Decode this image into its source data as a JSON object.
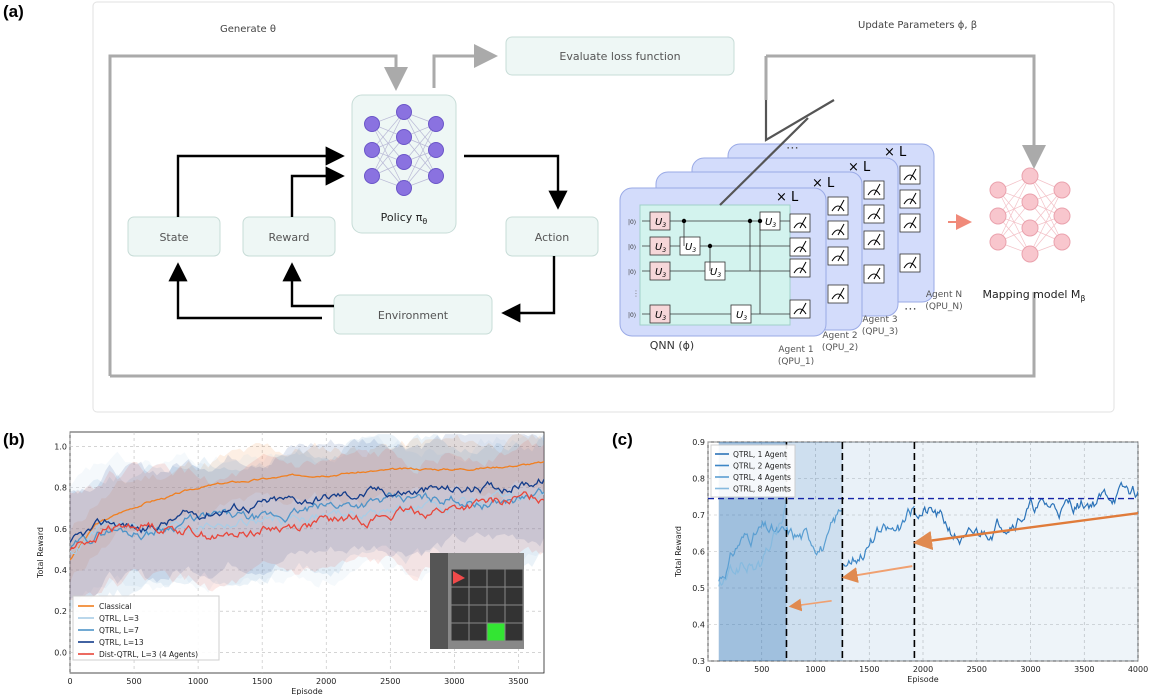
{
  "panels": {
    "a": "(a)",
    "b": "(b)",
    "c": "(c)"
  },
  "diagram": {
    "generate_label": "Generate θ",
    "update_label": "Update Parameters ϕ, β",
    "evaluate_box": "Evaluate loss function",
    "policy_label": "Policy π",
    "policy_sub": "θ",
    "state_box": "State",
    "reward_box": "Reward",
    "action_box": "Action",
    "environment_box": "Environment",
    "qnn_label": "QNN (ϕ)",
    "times_L": "× L",
    "u3": "U",
    "u3_sub": "3",
    "ket0": "|0⟩",
    "agents": [
      {
        "name": "Agent 1",
        "qpu": "(QPU_1)"
      },
      {
        "name": "Agent 2",
        "qpu": "(QPU_2)"
      },
      {
        "name": "Agent 3",
        "qpu": "(QPU_3)"
      },
      {
        "name": "Agent N",
        "qpu": "(QPU_N)"
      }
    ],
    "dots": "⋯",
    "mapping_label": "Mapping model M",
    "mapping_sub": "β",
    "colors": {
      "box_fill": "#eef7f5",
      "box_stroke": "#c7dcd7",
      "node": "#8a72e0",
      "qnn_fill": "#d3dcfb",
      "map_node": "#f8c6cd"
    }
  },
  "chart_data": [
    {
      "type": "line",
      "xlabel": "Episode",
      "ylabel": "Total Reward",
      "xlim": [
        0,
        3700
      ],
      "ylim": [
        -0.1,
        1.07
      ],
      "xticks": [
        0,
        500,
        1000,
        1500,
        2000,
        2500,
        3000,
        3500
      ],
      "yticks": [
        0.0,
        0.2,
        0.4,
        0.6,
        0.8,
        1.0
      ],
      "grid": true,
      "legend_position": "bottom-left",
      "series": [
        {
          "name": "Classical",
          "color": "#f07f20",
          "x": [
            0,
            200,
            400,
            600,
            800,
            1000,
            1200,
            1500,
            1800,
            2100,
            2400,
            2700,
            3000,
            3300,
            3700
          ],
          "y": [
            0.45,
            0.62,
            0.68,
            0.73,
            0.76,
            0.8,
            0.82,
            0.84,
            0.86,
            0.87,
            0.88,
            0.89,
            0.89,
            0.9,
            0.92
          ]
        },
        {
          "name": "QTRL, L=3",
          "color": "#a9cde6",
          "x": [
            0,
            300,
            600,
            900,
            1200,
            1500,
            1800,
            2100,
            2400,
            2700,
            3000,
            3300,
            3700
          ],
          "y": [
            0.48,
            0.62,
            0.6,
            0.62,
            0.63,
            0.64,
            0.66,
            0.67,
            0.68,
            0.7,
            0.72,
            0.73,
            0.75
          ]
        },
        {
          "name": "QTRL, L=7",
          "color": "#4f94c8",
          "x": [
            0,
            300,
            600,
            900,
            1200,
            1500,
            1800,
            2100,
            2400,
            2700,
            3000,
            3300,
            3700
          ],
          "y": [
            0.5,
            0.6,
            0.58,
            0.64,
            0.66,
            0.64,
            0.68,
            0.72,
            0.73,
            0.74,
            0.75,
            0.72,
            0.77
          ]
        },
        {
          "name": "QTRL, L=13",
          "color": "#133c8a",
          "x": [
            0,
            300,
            600,
            900,
            1200,
            1500,
            1800,
            2100,
            2400,
            2700,
            3000,
            3300,
            3700
          ],
          "y": [
            0.52,
            0.63,
            0.6,
            0.66,
            0.7,
            0.72,
            0.74,
            0.76,
            0.78,
            0.78,
            0.79,
            0.8,
            0.84
          ]
        },
        {
          "name": "Dist-QTRL, L=3 (4 Agents)",
          "color": "#e8463a",
          "x": [
            0,
            300,
            600,
            900,
            1200,
            1500,
            1800,
            2100,
            2400,
            2700,
            3000,
            3300,
            3700
          ],
          "y": [
            0.5,
            0.6,
            0.62,
            0.6,
            0.56,
            0.6,
            0.62,
            0.64,
            0.66,
            0.68,
            0.7,
            0.72,
            0.76
          ]
        }
      ]
    },
    {
      "type": "line",
      "xlabel": "Episode",
      "ylabel": "Total Reward",
      "xlim": [
        0,
        4000
      ],
      "ylim": [
        0.3,
        0.9
      ],
      "xticks": [
        0,
        500,
        1000,
        1500,
        2000,
        2500,
        3000,
        3500,
        4000
      ],
      "yticks": [
        0.3,
        0.4,
        0.5,
        0.6,
        0.7,
        0.8,
        0.9
      ],
      "grid": true,
      "legend_position": "top-left",
      "reference_y": 0.745,
      "vlines": [
        730,
        1250,
        1920
      ],
      "series": [
        {
          "name": "QTRL, 1 Agent",
          "color": "#2c73b8",
          "x": [
            1920,
            2100,
            2400,
            2700,
            3000,
            3300,
            3600,
            3800,
            4000
          ],
          "y": [
            0.72,
            0.7,
            0.62,
            0.68,
            0.72,
            0.72,
            0.74,
            0.76,
            0.76
          ]
        },
        {
          "name": "QTRL, 2 Agents",
          "color": "#3d86c6",
          "x": [
            1250,
            1400,
            1600,
            1800,
            1920
          ],
          "y": [
            0.57,
            0.6,
            0.65,
            0.66,
            0.72
          ]
        },
        {
          "name": "QTRL, 4 Agents",
          "color": "#5b9fd2",
          "x": [
            100,
            300,
            500,
            700,
            900,
            1100,
            1250
          ],
          "y": [
            0.52,
            0.63,
            0.66,
            0.64,
            0.64,
            0.62,
            0.72
          ]
        },
        {
          "name": "QTRL, 8 Agents",
          "color": "#86badf",
          "x": [
            100,
            300,
            500,
            730
          ],
          "y": [
            0.5,
            0.56,
            0.56,
            0.72
          ]
        }
      ]
    }
  ]
}
